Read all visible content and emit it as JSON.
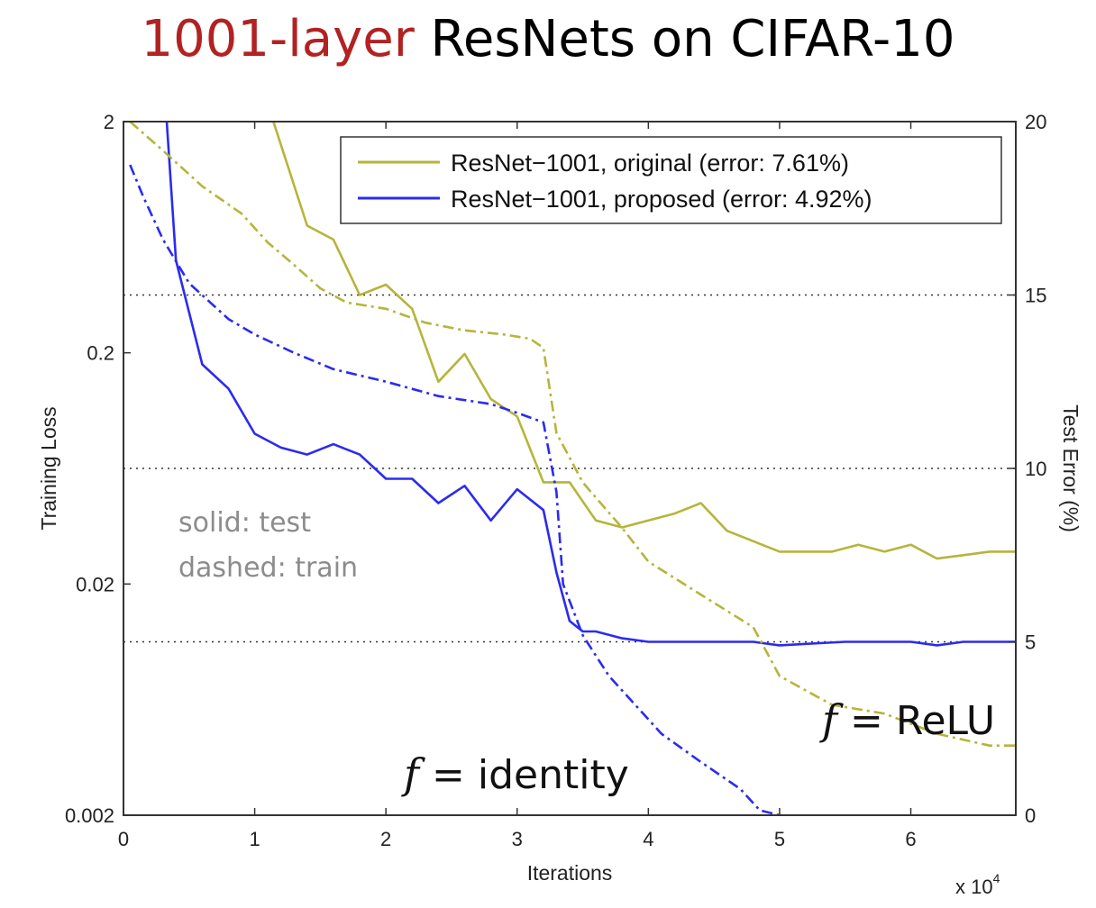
{
  "title": {
    "accent": "1001-layer",
    "rest": " ResNets on CIFAR-10"
  },
  "colors": {
    "original": "#b5b53c",
    "proposed": "#2b2bf0",
    "title_accent": "#b22222"
  },
  "annotations": {
    "solid": "solid: test",
    "dashed": "dashed: train",
    "identity_f": "f",
    "identity_rest": " = identity",
    "relu_f": "f",
    "relu_rest": " = ReLU",
    "xscale": "x 10",
    "xscale_exp": "4"
  },
  "chart_data": {
    "type": "line",
    "xlabel": "Iterations",
    "ylabel": "Training Loss",
    "y2label": "Test Error (%)",
    "xlim": [
      0,
      6.8
    ],
    "ylim": [
      0.002,
      2
    ],
    "y_scale": "log",
    "y2lim": [
      0,
      20
    ],
    "x_ticks": [
      "0",
      "1",
      "2",
      "3",
      "4",
      "5",
      "6"
    ],
    "y_ticks": [
      "2",
      "0.2",
      "0.02",
      "0.002"
    ],
    "y2_ticks": [
      "20",
      "15",
      "10",
      "5",
      "0"
    ],
    "grid": "dotted horizontal at test error 5, 10, 15",
    "legend_position": "top-right",
    "legend": [
      "ResNet−1001, original (error: 7.61%)",
      "ResNet−1001, proposed (error: 4.92%)"
    ],
    "series": [
      {
        "name": "ResNet−1001, original (error: 7.61%)",
        "style": "solid",
        "axis": "test_error",
        "x": [
          1.1,
          1.4,
          1.6,
          1.8,
          2.0,
          2.2,
          2.4,
          2.6,
          2.8,
          3.0,
          3.2,
          3.4,
          3.6,
          3.8,
          4.0,
          4.2,
          4.4,
          4.6,
          4.8,
          5.0,
          5.2,
          5.4,
          5.6,
          5.8,
          6.0,
          6.2,
          6.4,
          6.6,
          6.8
        ],
        "y": [
          20.5,
          17.0,
          16.6,
          15.0,
          15.3,
          14.6,
          12.5,
          13.3,
          12.0,
          11.5,
          9.6,
          9.6,
          8.5,
          8.3,
          8.5,
          8.7,
          9.0,
          8.2,
          7.9,
          7.6,
          7.6,
          7.6,
          7.8,
          7.6,
          7.8,
          7.4,
          7.5,
          7.6,
          7.6
        ]
      },
      {
        "name": "ResNet−1001, proposed (error: 4.92%)",
        "style": "solid",
        "axis": "test_error",
        "x": [
          0.33,
          0.4,
          0.6,
          0.8,
          1.0,
          1.2,
          1.4,
          1.6,
          1.8,
          2.0,
          2.2,
          2.4,
          2.6,
          2.8,
          3.0,
          3.2,
          3.3,
          3.4,
          3.5,
          3.6,
          3.8,
          4.0,
          4.2,
          4.4,
          4.6,
          4.8,
          5.0,
          5.5,
          6.0,
          6.2,
          6.4,
          6.8
        ],
        "y": [
          20.0,
          16.0,
          13.0,
          12.3,
          11.0,
          10.6,
          10.4,
          10.7,
          10.4,
          9.7,
          9.7,
          9.0,
          9.5,
          8.5,
          9.4,
          8.8,
          7.0,
          5.6,
          5.3,
          5.3,
          5.1,
          5.0,
          5.0,
          5.0,
          5.0,
          5.0,
          4.9,
          5.0,
          5.0,
          4.9,
          5.0,
          5.0
        ]
      },
      {
        "name": "ResNet−1001, original (error: 7.61%)",
        "style": "dashed",
        "axis": "training_loss",
        "x": [
          0.05,
          0.3,
          0.6,
          0.9,
          1.1,
          1.3,
          1.5,
          1.7,
          2.0,
          2.3,
          2.6,
          2.9,
          3.1,
          3.2,
          3.3,
          3.5,
          3.8,
          4.0,
          4.4,
          4.8,
          5.0,
          5.4,
          5.8,
          6.2,
          6.6,
          6.8
        ],
        "y": [
          2.0,
          1.5,
          1.05,
          0.8,
          0.6,
          0.48,
          0.38,
          0.33,
          0.31,
          0.27,
          0.25,
          0.24,
          0.23,
          0.21,
          0.09,
          0.055,
          0.035,
          0.025,
          0.018,
          0.013,
          0.008,
          0.006,
          0.0055,
          0.0045,
          0.004,
          0.004
        ]
      },
      {
        "name": "ResNet−1001, proposed (error: 4.92%)",
        "style": "dashed",
        "axis": "training_loss",
        "x": [
          0.05,
          0.15,
          0.3,
          0.5,
          0.8,
          1.0,
          1.3,
          1.6,
          2.0,
          2.4,
          2.8,
          3.0,
          3.2,
          3.3,
          3.35,
          3.5,
          3.7,
          3.9,
          4.1,
          4.4,
          4.7,
          4.85,
          5.0
        ],
        "y": [
          1.3,
          0.95,
          0.62,
          0.4,
          0.28,
          0.24,
          0.2,
          0.17,
          0.15,
          0.13,
          0.12,
          0.11,
          0.1,
          0.05,
          0.02,
          0.012,
          0.008,
          0.006,
          0.0045,
          0.0034,
          0.0026,
          0.0021,
          0.002
        ]
      }
    ]
  }
}
